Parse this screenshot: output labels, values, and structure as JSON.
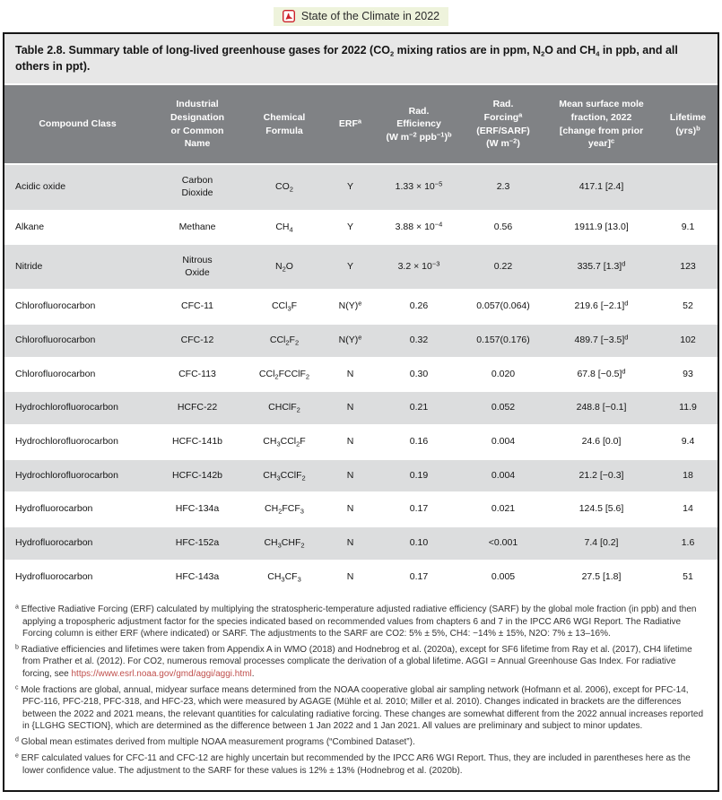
{
  "colors": {
    "header_bg": "#808285",
    "row_shaded_bg": "#dcddde",
    "caption_bg": "#e7e7e7",
    "link_red": "#c0504d",
    "pdf_chip_bg": "#eef3dc",
    "pdf_icon_red": "#cc2229"
  },
  "header": {
    "link_label": "State of the Climate in 2022",
    "icon": "pdf-icon"
  },
  "table": {
    "caption": "Table 2.8. Summary table of long-lived greenhouse gases for 2022 (CO_2_ mixing ratios are in ppm, N_2_O and CH_4_ in ppb, and all others in ppt).",
    "columns": [
      {
        "id": "compound_class",
        "label": "Compound Class"
      },
      {
        "id": "name",
        "label": "Industrial\nDesignation\nor Common\nName"
      },
      {
        "id": "formula",
        "label": "Chemical\nFormula"
      },
      {
        "id": "erf",
        "label": "ERF~a~"
      },
      {
        "id": "rad_efficiency",
        "label": "Rad.\nEfficiency\n(W m~−2~ ppb~−1~)~b~"
      },
      {
        "id": "rad_forcing",
        "label": "Rad.\nForcing~a~\n(ERF/SARF)\n(W m~−2~)"
      },
      {
        "id": "mole_fraction",
        "label": "Mean surface mole\nfraction, 2022\n[change from prior\nyear]~c~"
      },
      {
        "id": "lifetime",
        "label": "Lifetime\n(yrs)~b~"
      }
    ],
    "rows": [
      {
        "compound_class": "Acidic oxide",
        "name": "Carbon\nDioxide",
        "formula": "CO_2_",
        "erf": "Y",
        "rad_efficiency": "1.33 × 10~−5~",
        "rad_forcing": "2.3",
        "mole_fraction": "417.1 [2.4]",
        "lifetime": ""
      },
      {
        "compound_class": "Alkane",
        "name": "Methane",
        "formula": "CH_4_",
        "erf": "Y",
        "rad_efficiency": "3.88 × 10~−4~",
        "rad_forcing": "0.56",
        "mole_fraction": "1911.9 [13.0]",
        "lifetime": "9.1"
      },
      {
        "compound_class": "Nitride",
        "name": "Nitrous\nOxide",
        "formula": "N_2_O",
        "erf": "Y",
        "rad_efficiency": "3.2 × 10~−3~",
        "rad_forcing": "0.22",
        "mole_fraction": "335.7 [1.3]~d~",
        "lifetime": "123"
      },
      {
        "compound_class": "Chlorofluorocarbon",
        "name": "CFC-11",
        "formula": "CCl_3_F",
        "erf": "N(Y)~e~",
        "rad_efficiency": "0.26",
        "rad_forcing": "0.057(0.064)",
        "mole_fraction": "219.6 [−2.1]~d~",
        "lifetime": "52"
      },
      {
        "compound_class": "Chlorofluorocarbon",
        "name": "CFC-12",
        "formula": "CCl_2_F_2_",
        "erf": "N(Y)~e~",
        "rad_efficiency": "0.32",
        "rad_forcing": "0.157(0.176)",
        "mole_fraction": "489.7 [−3.5]~d~",
        "lifetime": "102"
      },
      {
        "compound_class": "Chlorofluorocarbon",
        "name": "CFC-113",
        "formula": "CCl_2_FCClF_2_",
        "erf": "N",
        "rad_efficiency": "0.30",
        "rad_forcing": "0.020",
        "mole_fraction": "67.8 [−0.5]~d~",
        "lifetime": "93"
      },
      {
        "compound_class": "Hydrochlorofluorocarbon",
        "name": "HCFC-22",
        "formula": "CHClF_2_",
        "erf": "N",
        "rad_efficiency": "0.21",
        "rad_forcing": "0.052",
        "mole_fraction": "248.8 [−0.1]",
        "lifetime": "11.9"
      },
      {
        "compound_class": "Hydrochlorofluorocarbon",
        "name": "HCFC-141b",
        "formula": "CH_3_CCl_2_F",
        "erf": "N",
        "rad_efficiency": "0.16",
        "rad_forcing": "0.004",
        "mole_fraction": "24.6 [0.0]",
        "lifetime": "9.4"
      },
      {
        "compound_class": "Hydrochlorofluorocarbon",
        "name": "HCFC-142b",
        "formula": "CH_3_CClF_2_",
        "erf": "N",
        "rad_efficiency": "0.19",
        "rad_forcing": "0.004",
        "mole_fraction": "21.2 [−0.3]",
        "lifetime": "18"
      },
      {
        "compound_class": "Hydrofluorocarbon",
        "name": "HFC-134a",
        "formula": "CH_2_FCF_3_",
        "erf": "N",
        "rad_efficiency": "0.17",
        "rad_forcing": "0.021",
        "mole_fraction": "124.5 [5.6]",
        "lifetime": "14"
      },
      {
        "compound_class": "Hydrofluorocarbon",
        "name": "HFC-152a",
        "formula": "CH_3_CHF_2_",
        "erf": "N",
        "rad_efficiency": "0.10",
        "rad_forcing": "<0.001",
        "mole_fraction": "7.4 [0.2]",
        "lifetime": "1.6"
      },
      {
        "compound_class": "Hydrofluorocarbon",
        "name": "HFC-143a",
        "formula": "CH_3_CF_3_",
        "erf": "N",
        "rad_efficiency": "0.17",
        "rad_forcing": "0.005",
        "mole_fraction": "27.5 [1.8]",
        "lifetime": "51"
      }
    ]
  },
  "footnotes": [
    {
      "marker": "a",
      "text": "Effective Radiative Forcing (ERF) calculated by multiplying the stratospheric-temperature adjusted radiative efficiency (SARF) by the global mole fraction (in ppb) and then applying a tropospheric adjustment factor for the species indicated based on recommended values from chapters 6 and 7 in the IPCC AR6 WGI Report. The Radiative Forcing column is either ERF (where indicated) or SARF. The adjustments to the SARF are CO2: 5% ± 5%, CH4: −14% ± 15%, N2O: 7% ± 13–16%."
    },
    {
      "marker": "b",
      "text": "Radiative efficiencies and lifetimes were taken from Appendix A in WMO (2018) and Hodnebrog et al. (2020a), except for SF6 lifetime from Ray et al. (2017), CH4 lifetime from Prather et al. (2012). For CO2, numerous removal processes complicate the derivation of a global lifetime. AGGI = Annual Greenhouse Gas Index. For radiative forcing, see [[https://www.esrl.noaa.gov/gmd/aggi/aggi.html]]."
    },
    {
      "marker": "c",
      "text": "Mole fractions are global, annual, midyear surface means determined from the NOAA cooperative global air sampling network (Hofmann et al. 2006), except for PFC-14, PFC-116, PFC-218, PFC-318, and HFC-23, which were measured by AGAGE (Mühle et al. 2010; Miller et al. 2010). Changes indicated in brackets are the differences between the 2022 and 2021 means, the relevant quantities for calculating radiative forcing. These changes are somewhat different from the 2022 annual increases reported in {LLGHG SECTION}, which are determined as the difference between 1 Jan 2022 and 1 Jan 2021. All values are preliminary and subject to minor updates."
    },
    {
      "marker": "d",
      "text": "Global mean estimates derived from multiple NOAA measurement programs (“Combined Dataset”)."
    },
    {
      "marker": "e",
      "text": "ERF calculated values for CFC-11 and CFC-12 are highly uncertain but recommended by the IPCC AR6 WGI Report. Thus, they are included in parentheses here as the lower confidence value. The adjustment to the SARF for these values is 12% ± 13% (Hodnebrog et al. (2020b)."
    }
  ]
}
